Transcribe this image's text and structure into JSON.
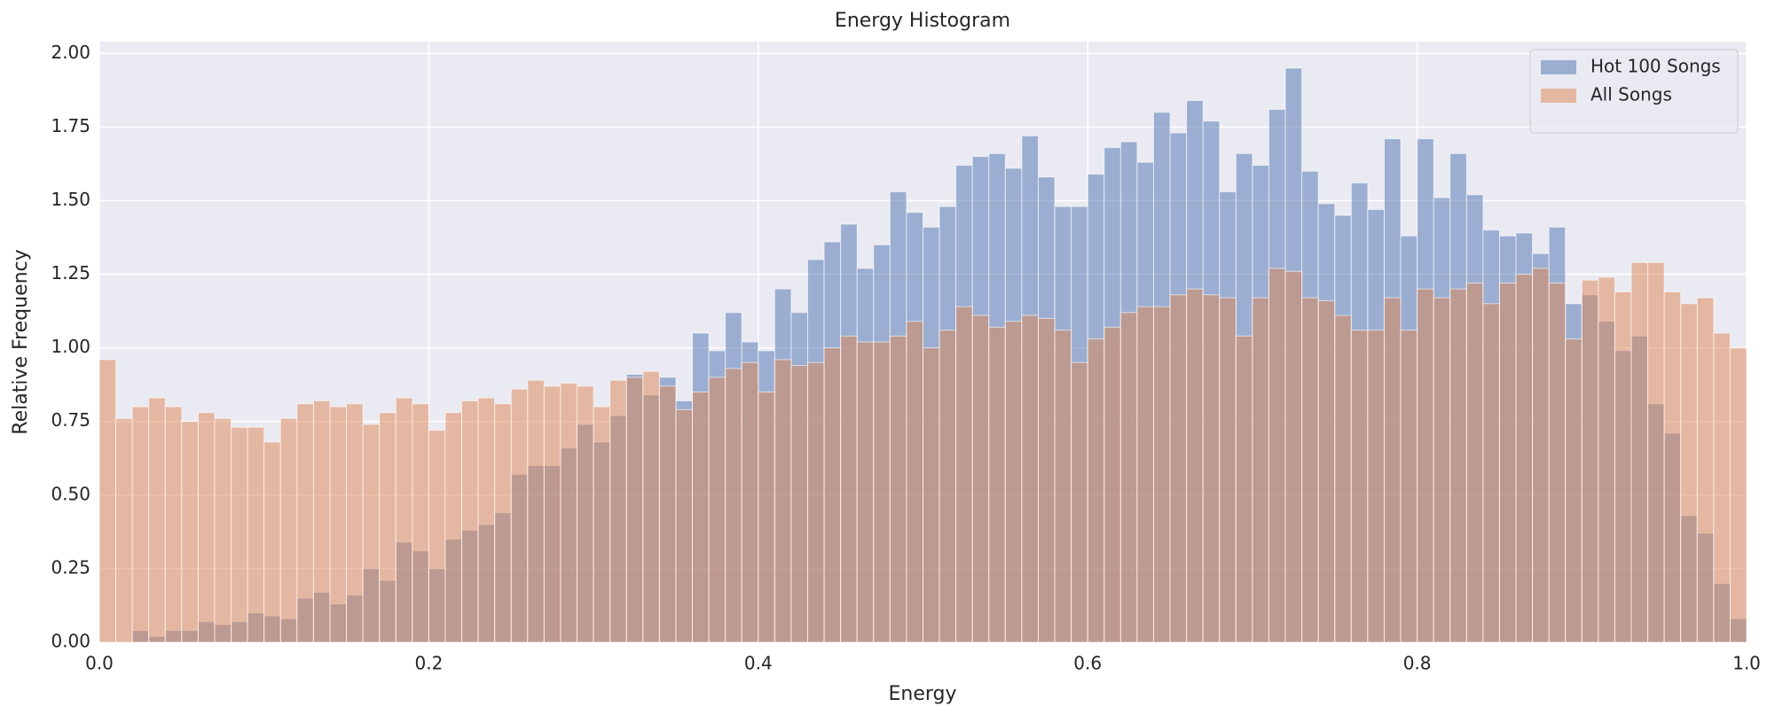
{
  "chart_data": {
    "type": "histogram",
    "title": "Energy Histogram",
    "x_label": "Energy",
    "y_label": "Relative Frequency",
    "bins": [
      0,
      0.01,
      0.02,
      0.03,
      0.04,
      0.05,
      0.06,
      0.07,
      0.08,
      0.09,
      0.1,
      0.11,
      0.12,
      0.13,
      0.14,
      0.15,
      0.16,
      0.17,
      0.18,
      0.19,
      0.2,
      0.21,
      0.22,
      0.23,
      0.24,
      0.25,
      0.26,
      0.27,
      0.28,
      0.29,
      0.3,
      0.31,
      0.32,
      0.33,
      0.34,
      0.35,
      0.36,
      0.37,
      0.38,
      0.39,
      0.4,
      0.41,
      0.42,
      0.43,
      0.44,
      0.45,
      0.46,
      0.47,
      0.48,
      0.49,
      0.5,
      0.51,
      0.52,
      0.53,
      0.54,
      0.55,
      0.56,
      0.57,
      0.58,
      0.59,
      0.6,
      0.61,
      0.62,
      0.63,
      0.64,
      0.65,
      0.66,
      0.67,
      0.68,
      0.69,
      0.7,
      0.71,
      0.72,
      0.73,
      0.74,
      0.75,
      0.76,
      0.77,
      0.78,
      0.79,
      0.8,
      0.81,
      0.82,
      0.83,
      0.84,
      0.85,
      0.86,
      0.87,
      0.88,
      0.89,
      0.9,
      0.91,
      0.92,
      0.93,
      0.94,
      0.95,
      0.96,
      0.97,
      0.98,
      0.99,
      1
    ],
    "series": [
      {
        "name": "Hot 100 Songs",
        "color": "#4c72b0",
        "values": [
          0,
          0,
          0.04,
          0.02,
          0.04,
          0.04,
          0.07,
          0.06,
          0.07,
          0.1,
          0.09,
          0.08,
          0.15,
          0.17,
          0.13,
          0.16,
          0.25,
          0.21,
          0.34,
          0.31,
          0.25,
          0.35,
          0.38,
          0.4,
          0.44,
          0.57,
          0.6,
          0.6,
          0.66,
          0.74,
          0.68,
          0.77,
          0.91,
          0.84,
          0.9,
          0.82,
          1.05,
          0.99,
          1.12,
          1.02,
          0.99,
          1.2,
          1.12,
          1.3,
          1.36,
          1.42,
          1.27,
          1.35,
          1.53,
          1.46,
          1.41,
          1.48,
          1.62,
          1.65,
          1.66,
          1.61,
          1.72,
          1.58,
          1.48,
          1.48,
          1.59,
          1.68,
          1.7,
          1.63,
          1.8,
          1.73,
          1.84,
          1.77,
          1.53,
          1.66,
          1.62,
          1.81,
          1.95,
          1.6,
          1.49,
          1.45,
          1.56,
          1.47,
          1.71,
          1.38,
          1.71,
          1.51,
          1.66,
          1.52,
          1.4,
          1.38,
          1.39,
          1.32,
          1.41,
          1.15,
          1.18,
          1.09,
          0.99,
          1.04,
          0.81,
          0.71,
          0.43,
          0.37,
          0.2,
          0.08
        ]
      },
      {
        "name": "All Songs",
        "color": "#dd8452",
        "values": [
          0.96,
          0.76,
          0.8,
          0.83,
          0.8,
          0.75,
          0.78,
          0.76,
          0.73,
          0.73,
          0.68,
          0.76,
          0.81,
          0.82,
          0.8,
          0.81,
          0.74,
          0.78,
          0.83,
          0.81,
          0.72,
          0.78,
          0.82,
          0.83,
          0.81,
          0.86,
          0.89,
          0.87,
          0.88,
          0.87,
          0.8,
          0.89,
          0.9,
          0.92,
          0.87,
          0.79,
          0.85,
          0.9,
          0.93,
          0.95,
          0.85,
          0.96,
          0.94,
          0.95,
          1.0,
          1.04,
          1.02,
          1.02,
          1.04,
          1.09,
          1.0,
          1.06,
          1.14,
          1.11,
          1.07,
          1.09,
          1.11,
          1.1,
          1.06,
          0.95,
          1.03,
          1.07,
          1.12,
          1.14,
          1.14,
          1.18,
          1.2,
          1.18,
          1.17,
          1.04,
          1.17,
          1.27,
          1.26,
          1.17,
          1.16,
          1.11,
          1.06,
          1.06,
          1.17,
          1.06,
          1.2,
          1.17,
          1.2,
          1.22,
          1.15,
          1.22,
          1.25,
          1.27,
          1.22,
          1.03,
          1.23,
          1.24,
          1.19,
          1.29,
          1.29,
          1.19,
          1.15,
          1.17,
          1.05,
          1.0
        ]
      }
    ],
    "xlim": [
      0,
      1
    ],
    "ylim": [
      0,
      2.04
    ],
    "xticks": [
      {
        "value": 0,
        "label": "0.0"
      },
      0.2,
      0.4,
      0.6,
      0.8,
      {
        "value": 1,
        "label": "1.0"
      }
    ],
    "yticks": [
      {
        "value": 0,
        "label": "0.00"
      },
      0.25,
      {
        "value": 0.5,
        "label": "0.50"
      },
      0.75,
      {
        "value": 1,
        "label": "1.00"
      },
      1.25,
      {
        "value": 1.5,
        "label": "1.50"
      },
      1.75,
      {
        "value": 2,
        "label": "2.00"
      }
    ],
    "grid": true,
    "legend": "upper right"
  }
}
